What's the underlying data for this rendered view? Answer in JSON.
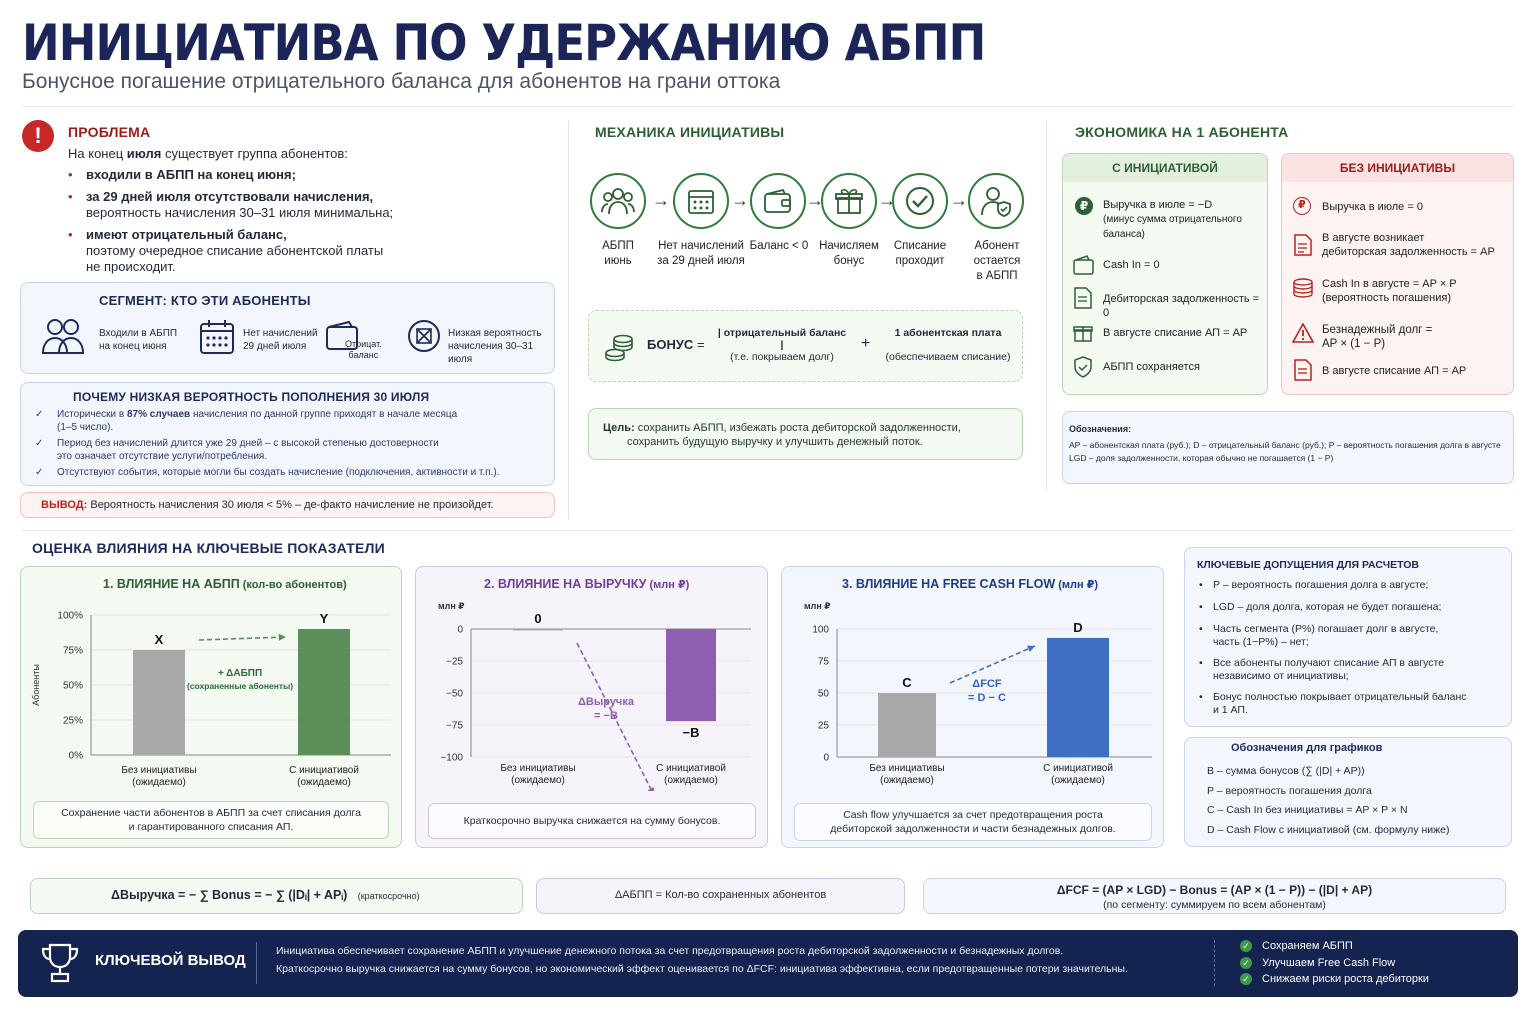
{
  "header": {
    "title": "ИНИЦИАТИВА ПО УДЕРЖАНИЮ АБПП",
    "subtitle": "Бонусное погашение отрицательного баланса для абонентов на грани оттока"
  },
  "problem": {
    "title": "ПРОБЛЕМА",
    "intro_a": "На конец ",
    "intro_b": "июля",
    "intro_c": " существует группа абонентов:",
    "b1": "входили в АБПП на конец июня;",
    "b2_bold": "за 29 дней июля отсутствовали начисления,",
    "b2_rest": "вероятность начисления 30–31 июля минимальна;",
    "b3_bold": "имеют отрицательный баланс,",
    "b3_rest1": "поэтому очередное списание абонентской платы",
    "b3_rest2": "не происходит."
  },
  "segment": {
    "title": "СЕГМЕНТ: КТО ЭТИ АБОНЕНТЫ",
    "i1a": "Входили в АБПП",
    "i1b": "на конец июня",
    "i2a": "Нет начислений",
    "i2b": "29 дней июля",
    "i3a": "Отрицат.",
    "i3b": "баланс",
    "i4a": "Низкая вероятность",
    "i4b": "начисления 30–31 июля"
  },
  "why": {
    "title": "ПОЧЕМУ НИЗКАЯ ВЕРОЯТНОСТЬ ПОПОЛНЕНИЯ 30 ИЮЛЯ",
    "r1a": "Исторически в ",
    "r1b": "87% случаев",
    "r1c": " начисления по данной группе приходят в начале месяца",
    "r1d": "(1–5 число).",
    "r2a": "Период без начислений длится уже 29 дней – с высокой степенью достоверности",
    "r2b": "это означает отсутствие услуги/потребления.",
    "r3": "Отсутствуют события, которые могли бы создать начисление (подключения, активности и т.п.)."
  },
  "conclusion": {
    "label": "ВЫВОД:",
    "text": " Вероятность начисления 30 июля < 5% – де-факто начисление не произойдет."
  },
  "mechanics": {
    "title": "МЕХАНИКА ИНИЦИАТИВЫ",
    "s1a": "АБПП",
    "s1b": "июнь",
    "s2a": "Нет начислений",
    "s2b": "за 29 дней июля",
    "s3a": "Баланс < 0",
    "s4a": "Начисляем",
    "s4b": "бонус",
    "s5a": "Списание",
    "s5b": "проходит",
    "s6a": "Абонент",
    "s6b": "остается",
    "s6c": "в АБПП",
    "bonus_label": "БОНУС",
    "eq": "=",
    "num1": "| отрицательный баланс |",
    "den1": "(т.е. покрываем долг)",
    "plus": "+",
    "num2": "1 абонентская плата",
    "den2": "(обеспечиваем списание)",
    "goal_label": "Цель:",
    "goal1": " сохранить АБПП, избежать роста дебиторской задолженности,",
    "goal2": "сохранить будущую выручку и улучшить денежный поток."
  },
  "economics": {
    "title": "ЭКОНОМИКА НА 1 АБОНЕНТА",
    "with_title": "С ИНИЦИАТИВОЙ",
    "w1a": "Выручка в июле = −D",
    "w1b": "(минус сумма отрицательного",
    "w1c": "баланса)",
    "w2": "Cash In = 0",
    "w3": "Дебиторская задолженность = 0",
    "w4": "В августе списание АП = AP",
    "w5": "АБПП сохраняется",
    "without_title": "БЕЗ ИНИЦИАТИВЫ",
    "n1": "Выручка в июле = 0",
    "n2a": "В августе возникает",
    "n2b": "дебиторская задолженность = AP",
    "n3a": "Cash In в августе = AP × P",
    "n3b": "(вероятность погашения)",
    "n4a": "Безнадежный долг =",
    "n4b": "AP × (1 − P)",
    "n5": "В августе списание АП = AP",
    "legend_title": "Обозначения:",
    "legend1": "AP – абонентская плата (руб.); D – отрицательный баланс (руб.); P – вероятность погашения долга в августе",
    "legend2": "LGD – доля задолженности, которая обычно не погашается (1 − P)"
  },
  "impact": {
    "title": "ОЦЕНКА ВЛИЯНИЯ НА КЛЮЧЕВЫЕ ПОКАЗАТЕЛИ",
    "c1_title": "1.  ВЛИЯНИЕ НА АБПП",
    "c1_unit": " (кол-во абонентов)",
    "c1_note1": "Сохранение части абонентов в АБПП за счет списания долга",
    "c1_note2": "и гарантированного списания АП.",
    "c1_ann1": "+ ΔАБПП",
    "c1_ann2": "(сохраненные абоненты)",
    "c2_title": "2.  ВЛИЯНИЕ НА ВЫРУЧКУ",
    "c2_unit": " (млн ₽)",
    "c2_note": "Краткосрочно выручка снижается на сумму бонусов.",
    "c2_ann1": "ΔВыручка",
    "c2_ann2": "= −B",
    "c3_title": "3.  ВЛИЯНИЕ НА FREE CASH FLOW",
    "c3_unit": " (млн ₽)",
    "c3_note1": "Cash flow улучшается за счет предотвращения роста",
    "c3_note2": "дебиторской задолженности и части безнадежных долгов.",
    "c3_ann1": "ΔFCF",
    "c3_ann2": "= D − C"
  },
  "chart_data": [
    {
      "type": "bar",
      "title": "1.  ВЛИЯНИЕ НА АБПП (кол-во абонентов)",
      "categories": [
        "Без инициативы (ожидаемо)",
        "С инициативой (ожидаемо)"
      ],
      "values": [
        75,
        90
      ],
      "data_labels": [
        "X",
        "Y"
      ],
      "ylabel": "Абоненты",
      "yticks": [
        "0%",
        "25%",
        "50%",
        "75%",
        "100%"
      ],
      "ylim": [
        0,
        100
      ],
      "colors": [
        "#a9a9a9",
        "#5b8f5a"
      ]
    },
    {
      "type": "bar",
      "title": "2.  ВЛИЯНИЕ НА ВЫРУЧКУ (млн ₽)",
      "categories": [
        "Без инициативы (ожидаемо)",
        "С инициативой (ожидаемо)"
      ],
      "values": [
        0,
        -72
      ],
      "data_labels": [
        "0",
        "−B"
      ],
      "ylabel": "млн ₽",
      "yticks": [
        "−100",
        "−75",
        "−50",
        "−25",
        "0"
      ],
      "ylim": [
        -100,
        0
      ],
      "colors": [
        "#a9a9a9",
        "#8e5fb0"
      ]
    },
    {
      "type": "bar",
      "title": "3.  ВЛИЯНИЕ НА FREE CASH FLOW (млн ₽)",
      "categories": [
        "Без инициативы (ожидаемо)",
        "С инициативой (ожидаемо)"
      ],
      "values": [
        50,
        93
      ],
      "data_labels": [
        "C",
        "D"
      ],
      "ylabel": "млн ₽",
      "yticks": [
        "0",
        "25",
        "50",
        "75",
        "100"
      ],
      "ylim": [
        0,
        100
      ],
      "colors": [
        "#a9a9a9",
        "#3e6fc2"
      ]
    }
  ],
  "assumptions": {
    "title": "КЛЮЧЕВЫЕ ДОПУЩЕНИЯ ДЛЯ РАСЧЕТОВ",
    "a1": "P – вероятность погашения долга в августе;",
    "a2": "LGD – доля долга, которая не будет погашена;",
    "a3a": "Часть сегмента (P%) погашает долг в августе,",
    "a3b": "часть (1−P%) – нет;",
    "a4a": "Все абоненты получают списание АП в августе",
    "a4b": "независимо от инициативы;",
    "a5a": "Бонус полностью покрывает отрицательный баланс",
    "a5b": "и 1 АП."
  },
  "chart_legend": {
    "title": "Обозначения для графиков",
    "l1": "B – сумма бонусов (∑ (|D| + AP))",
    "l2": "P – вероятность погашения долга",
    "l3": "C – Cash In без инициативы = AP × P × N",
    "l4": "D – Cash Flow с инициативой (см. формулу ниже)"
  },
  "formulas": {
    "f1": "ΔВыручка = − ∑ Bonus = − ∑ (|Dᵢ| + APᵢ)",
    "f1_note": "(краткосрочно)",
    "f2": "ΔАБПП = Кол-во сохраненных абонентов",
    "f3a": "ΔFCF = (AP × LGD) − Bonus = (AP × (1 − P)) − (|D| + AP)",
    "f3b": "(по сегменту: суммируем по всем абонентам)"
  },
  "footer": {
    "title": "КЛЮЧЕВОЙ ВЫВОД",
    "text1": "Инициатива обеспечивает сохранение АБПП и улучшение денежного потока за счет предотвращения роста дебиторской задолженности и безнадежных долгов.",
    "text2": "Краткосрочно выручка снижается на сумму бонусов, но экономический эффект оценивается по ΔFCF: инициатива эффективна, если предотвращенные потери значительны.",
    "c1": "Сохраняем АБПП",
    "c2": "Улучшаем Free Cash Flow",
    "c3": "Снижаем риски роста дебиторки"
  }
}
